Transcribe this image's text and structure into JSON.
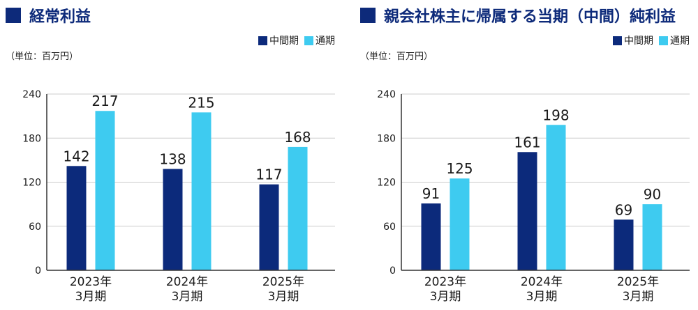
{
  "legend": {
    "interim": "中間期",
    "full_year": "通期",
    "interim_color": "#0c2a7b",
    "full_year_color": "#3ecbf0"
  },
  "unit_label": "（単位：百万円）",
  "chart_data": [
    {
      "type": "bar",
      "title": "経常利益",
      "categories": [
        [
          "2023年",
          "3月期"
        ],
        [
          "2024年",
          "3月期"
        ],
        [
          "2025年",
          "3月期"
        ]
      ],
      "series": [
        {
          "name": "中間期",
          "values": [
            142,
            138,
            117
          ],
          "color": "#0c2a7b"
        },
        {
          "name": "通期",
          "values": [
            217,
            215,
            168
          ],
          "color": "#3ecbf0"
        }
      ],
      "ylim": [
        0,
        240
      ],
      "yticks": [
        0,
        60,
        120,
        180,
        240
      ],
      "grid": true,
      "legend_position": "top-right"
    },
    {
      "type": "bar",
      "title": "親会社株主に帰属する当期（中間）純利益",
      "categories": [
        [
          "2023年",
          "3月期"
        ],
        [
          "2024年",
          "3月期"
        ],
        [
          "2025年",
          "3月期"
        ]
      ],
      "series": [
        {
          "name": "中間期",
          "values": [
            91,
            161,
            69
          ],
          "color": "#0c2a7b"
        },
        {
          "name": "通期",
          "values": [
            125,
            198,
            90
          ],
          "color": "#3ecbf0"
        }
      ],
      "ylim": [
        0,
        240
      ],
      "yticks": [
        0,
        60,
        120,
        180,
        240
      ],
      "grid": true,
      "legend_position": "top-right"
    }
  ]
}
